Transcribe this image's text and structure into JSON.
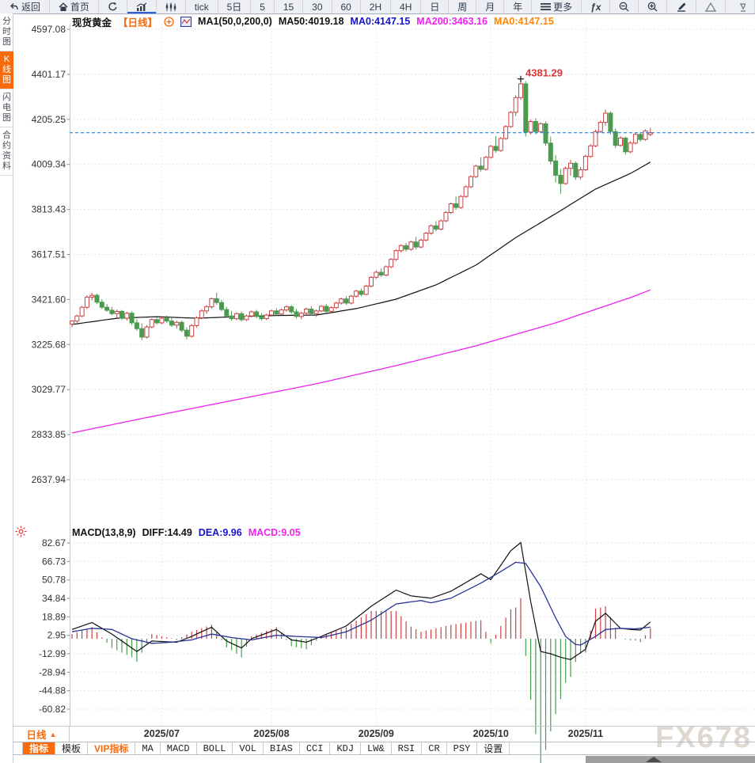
{
  "toolbar": {
    "items": [
      {
        "id": "back",
        "icon": "back-arrow-icon",
        "label": "返回"
      },
      {
        "id": "home",
        "icon": "home-icon",
        "label": "首页"
      },
      {
        "id": "refresh",
        "icon": "refresh-icon",
        "label": ""
      },
      {
        "id": "line-chart",
        "icon": "line-chart-icon",
        "label": "",
        "active": true
      },
      {
        "id": "candle-chart",
        "icon": "candlestick-icon",
        "label": ""
      },
      {
        "id": "tick",
        "label": "tick"
      },
      {
        "id": "5d",
        "label": "5日"
      },
      {
        "id": "m5",
        "label": "5"
      },
      {
        "id": "m15",
        "label": "15"
      },
      {
        "id": "m30",
        "label": "30"
      },
      {
        "id": "m60",
        "label": "60"
      },
      {
        "id": "h2",
        "label": "2H"
      },
      {
        "id": "h4",
        "label": "4H"
      },
      {
        "id": "day",
        "label": "日"
      },
      {
        "id": "week",
        "label": "周"
      },
      {
        "id": "month",
        "label": "月"
      },
      {
        "id": "year",
        "label": "年"
      },
      {
        "id": "more",
        "icon": "menu-icon",
        "label": "更多"
      },
      {
        "id": "fx",
        "label": "ƒx",
        "fx": true
      },
      {
        "id": "zoom-out",
        "icon": "zoom-out-icon",
        "label": ""
      },
      {
        "id": "zoom-in",
        "icon": "zoom-in-icon",
        "label": ""
      },
      {
        "id": "draw",
        "icon": "pencil-icon",
        "label": ""
      },
      {
        "id": "triangle",
        "icon": "triangle-icon",
        "label": ""
      },
      {
        "id": "shape",
        "icon": "shape-icon",
        "label": ""
      }
    ]
  },
  "sidebar": {
    "items": [
      {
        "id": "time-chart",
        "label": "分时图",
        "active": false
      },
      {
        "id": "kline-chart",
        "label": "K线图",
        "active": true
      },
      {
        "id": "flash-chart",
        "label": "闪电图",
        "active": false
      },
      {
        "id": "contract-info",
        "label": "合约资料",
        "active": false
      }
    ]
  },
  "chart_header": {
    "parts": [
      {
        "text": "现货黄金",
        "color": "#111111",
        "bold": true
      },
      {
        "text": "【日线】",
        "color": "#f96a0a",
        "bold": true
      },
      {
        "icon": "add-circle-icon"
      },
      {
        "icon": "ma-chart-icon"
      },
      {
        "text": "MA1(50,0,200,0)",
        "color": "#111111"
      },
      {
        "text": "MA50:4019.18",
        "color": "#111111"
      },
      {
        "text": "MA0:4147.15",
        "color": "#1414cc"
      },
      {
        "text": "MA200:3463.16",
        "color": "#ee22ee"
      },
      {
        "text": "MA0:4147.15",
        "color": "#ff8800"
      }
    ]
  },
  "macd_header": {
    "parts": [
      {
        "text": "MACD(13,8,9)",
        "color": "#111111"
      },
      {
        "text": "DIFF:14.49",
        "color": "#111111"
      },
      {
        "text": "DEA:9.96",
        "color": "#1414cc"
      },
      {
        "text": "MACD:9.05",
        "color": "#ee22ee"
      }
    ]
  },
  "bottom": {
    "period_label": "日线",
    "period_arrow": "▲",
    "tabs": [
      {
        "label": "指标",
        "active": true
      },
      {
        "label": "模板"
      },
      {
        "label": "VIP指标",
        "vip": true
      },
      {
        "label": "MA"
      },
      {
        "label": "MACD"
      },
      {
        "label": "BOLL"
      },
      {
        "label": "VOL"
      },
      {
        "label": "BIAS"
      },
      {
        "label": "CCI"
      },
      {
        "label": "KDJ"
      },
      {
        "label": "LW&"
      },
      {
        "label": "RSI"
      },
      {
        "label": "CR"
      },
      {
        "label": "PSY"
      },
      {
        "label": "设置"
      }
    ]
  },
  "watermark": "FX678",
  "chart_data": {
    "type": "candlestick",
    "title": "现货黄金 日线",
    "price_axis": {
      "ticks": [
        "4597.08",
        "4401.17",
        "4205.25",
        "4009.34",
        "3813.43",
        "3617.51",
        "3421.60",
        "3225.68",
        "3029.77",
        "2833.85",
        "2637.94"
      ]
    },
    "macd_axis": {
      "ticks": [
        "82.67",
        "66.73",
        "50.78",
        "34.84",
        "18.89",
        "2.95",
        "-12.99",
        "-28.94",
        "-44.88",
        "-60.82"
      ]
    },
    "x_axis": {
      "labels": [
        {
          "label": "2025/07",
          "index": 18
        },
        {
          "label": "2025/08",
          "index": 40
        },
        {
          "label": "2025/09",
          "index": 61
        },
        {
          "label": "2025/10",
          "index": 84
        },
        {
          "label": "2025/11",
          "index": 103
        }
      ]
    },
    "current_price": 4147.15,
    "peak_annotation": {
      "index": 90,
      "value": 4381.29,
      "label": "4381.29"
    },
    "colors": {
      "up": "#c94343",
      "down": "#4a9b4f",
      "ma50": "#111111",
      "ma200": "#ee22ee",
      "diff": "#111111",
      "dea": "#283593",
      "price_line": "#1d86e8",
      "annotation": "#e03333",
      "grid": "#d9dce1",
      "axis_text": "#333333"
    },
    "candles": [
      [
        3315,
        3332,
        3302,
        3328
      ],
      [
        3328,
        3356,
        3320,
        3350
      ],
      [
        3350,
        3394,
        3344,
        3388
      ],
      [
        3388,
        3440,
        3380,
        3432
      ],
      [
        3432,
        3451,
        3418,
        3440
      ],
      [
        3440,
        3446,
        3402,
        3410
      ],
      [
        3410,
        3422,
        3380,
        3388
      ],
      [
        3388,
        3402,
        3368,
        3375
      ],
      [
        3375,
        3390,
        3352,
        3360
      ],
      [
        3360,
        3378,
        3340,
        3370
      ],
      [
        3370,
        3376,
        3332,
        3340
      ],
      [
        3340,
        3368,
        3330,
        3362
      ],
      [
        3362,
        3370,
        3312,
        3320
      ],
      [
        3320,
        3336,
        3286,
        3295
      ],
      [
        3295,
        3318,
        3245,
        3258
      ],
      [
        3258,
        3310,
        3252,
        3302
      ],
      [
        3302,
        3340,
        3296,
        3334
      ],
      [
        3334,
        3345,
        3312,
        3320
      ],
      [
        3320,
        3346,
        3314,
        3340
      ],
      [
        3340,
        3352,
        3320,
        3328
      ],
      [
        3328,
        3342,
        3302,
        3310
      ],
      [
        3310,
        3330,
        3295,
        3322
      ],
      [
        3322,
        3330,
        3280,
        3288
      ],
      [
        3288,
        3300,
        3248,
        3262
      ],
      [
        3262,
        3315,
        3256,
        3308
      ],
      [
        3308,
        3348,
        3300,
        3342
      ],
      [
        3342,
        3380,
        3336,
        3372
      ],
      [
        3372,
        3398,
        3360,
        3390
      ],
      [
        3390,
        3430,
        3382,
        3425
      ],
      [
        3425,
        3451,
        3398,
        3408
      ],
      [
        3408,
        3420,
        3370,
        3378
      ],
      [
        3378,
        3390,
        3342,
        3350
      ],
      [
        3350,
        3372,
        3330,
        3338
      ],
      [
        3338,
        3366,
        3332,
        3360
      ],
      [
        3360,
        3370,
        3326,
        3334
      ],
      [
        3334,
        3356,
        3328,
        3350
      ],
      [
        3350,
        3374,
        3344,
        3368
      ],
      [
        3368,
        3376,
        3340,
        3348
      ],
      [
        3348,
        3362,
        3330,
        3338
      ],
      [
        3338,
        3360,
        3332,
        3354
      ],
      [
        3354,
        3378,
        3348,
        3372
      ],
      [
        3372,
        3384,
        3350,
        3358
      ],
      [
        3358,
        3382,
        3352,
        3376
      ],
      [
        3376,
        3396,
        3368,
        3390
      ],
      [
        3390,
        3398,
        3360,
        3368
      ],
      [
        3368,
        3380,
        3340,
        3348
      ],
      [
        3348,
        3368,
        3336,
        3362
      ],
      [
        3362,
        3386,
        3356,
        3380
      ],
      [
        3380,
        3392,
        3352,
        3360
      ],
      [
        3360,
        3378,
        3346,
        3372
      ],
      [
        3372,
        3398,
        3366,
        3392
      ],
      [
        3392,
        3402,
        3362,
        3370
      ],
      [
        3370,
        3392,
        3364,
        3386
      ],
      [
        3386,
        3412,
        3380,
        3406
      ],
      [
        3406,
        3430,
        3400,
        3424
      ],
      [
        3424,
        3436,
        3398,
        3406
      ],
      [
        3406,
        3442,
        3400,
        3436
      ],
      [
        3436,
        3464,
        3430,
        3458
      ],
      [
        3458,
        3470,
        3436,
        3444
      ],
      [
        3444,
        3486,
        3440,
        3480
      ],
      [
        3480,
        3524,
        3474,
        3518
      ],
      [
        3518,
        3548,
        3510,
        3540
      ],
      [
        3540,
        3556,
        3520,
        3528
      ],
      [
        3528,
        3570,
        3522,
        3564
      ],
      [
        3564,
        3602,
        3558,
        3596
      ],
      [
        3596,
        3640,
        3590,
        3634
      ],
      [
        3634,
        3662,
        3626,
        3656
      ],
      [
        3656,
        3668,
        3630,
        3640
      ],
      [
        3640,
        3678,
        3634,
        3672
      ],
      [
        3672,
        3694,
        3640,
        3650
      ],
      [
        3650,
        3686,
        3644,
        3680
      ],
      [
        3680,
        3716,
        3674,
        3710
      ],
      [
        3710,
        3748,
        3704,
        3742
      ],
      [
        3742,
        3762,
        3718,
        3728
      ],
      [
        3728,
        3770,
        3722,
        3764
      ],
      [
        3764,
        3806,
        3758,
        3800
      ],
      [
        3800,
        3844,
        3794,
        3838
      ],
      [
        3838,
        3870,
        3812,
        3822
      ],
      [
        3822,
        3876,
        3816,
        3870
      ],
      [
        3870,
        3918,
        3864,
        3912
      ],
      [
        3912,
        3962,
        3906,
        3956
      ],
      [
        3956,
        4008,
        3950,
        4002
      ],
      [
        4002,
        4040,
        3978,
        3988
      ],
      [
        3988,
        4046,
        3982,
        4040
      ],
      [
        4040,
        4094,
        4034,
        4088
      ],
      [
        4088,
        4132,
        4060,
        4070
      ],
      [
        4070,
        4128,
        4064,
        4122
      ],
      [
        4122,
        4180,
        4116,
        4174
      ],
      [
        4174,
        4242,
        4168,
        4236
      ],
      [
        4236,
        4310,
        4220,
        4300
      ],
      [
        4300,
        4381.29,
        4290,
        4360
      ],
      [
        4360,
        4372,
        4130,
        4150
      ],
      [
        4150,
        4205,
        4140,
        4196
      ],
      [
        4196,
        4210,
        4140,
        4152
      ],
      [
        4152,
        4192,
        4146,
        4186
      ],
      [
        4186,
        4196,
        4090,
        4102
      ],
      [
        4102,
        4130,
        4010,
        4024
      ],
      [
        4024,
        4050,
        3930,
        3962
      ],
      [
        3962,
        3990,
        3881,
        3926
      ],
      [
        3926,
        4000,
        3920,
        3992
      ],
      [
        3992,
        4030,
        3960,
        4014
      ],
      [
        4014,
        4022,
        3942,
        3954
      ],
      [
        3954,
        3998,
        3944,
        3986
      ],
      [
        3986,
        4052,
        3980,
        4044
      ],
      [
        4044,
        4098,
        4038,
        4090
      ],
      [
        4090,
        4160,
        4084,
        4152
      ],
      [
        4152,
        4200,
        4146,
        4192
      ],
      [
        4192,
        4248,
        4178,
        4232
      ],
      [
        4232,
        4240,
        4140,
        4152
      ],
      [
        4152,
        4165,
        4080,
        4092
      ],
      [
        4092,
        4132,
        4086,
        4124
      ],
      [
        4124,
        4130,
        4052,
        4064
      ],
      [
        4064,
        4110,
        4058,
        4102
      ],
      [
        4102,
        4148,
        4096,
        4140
      ],
      [
        4140,
        4150,
        4108,
        4118
      ],
      [
        4118,
        4162,
        4112,
        4155
      ],
      [
        4140,
        4168,
        4132,
        4147.15
      ]
    ],
    "ma50_anchors": [
      [
        0,
        3313
      ],
      [
        9,
        3340
      ],
      [
        17,
        3347
      ],
      [
        25,
        3340
      ],
      [
        33,
        3347
      ],
      [
        41,
        3352
      ],
      [
        49,
        3354
      ],
      [
        57,
        3382
      ],
      [
        65,
        3423
      ],
      [
        73,
        3485
      ],
      [
        81,
        3571
      ],
      [
        89,
        3691
      ],
      [
        97,
        3795
      ],
      [
        105,
        3902
      ],
      [
        112,
        3970
      ],
      [
        116,
        4019.18
      ]
    ],
    "ma200_anchors": [
      [
        0,
        2841
      ],
      [
        17,
        2917
      ],
      [
        33,
        2986
      ],
      [
        49,
        3055
      ],
      [
        65,
        3134
      ],
      [
        81,
        3220
      ],
      [
        97,
        3320
      ],
      [
        112,
        3430
      ],
      [
        116,
        3463.16
      ]
    ],
    "macd": {
      "diff_anchors": [
        [
          0,
          8
        ],
        [
          4,
          14
        ],
        [
          8,
          4
        ],
        [
          13,
          -11
        ],
        [
          16,
          -2
        ],
        [
          21,
          -3
        ],
        [
          24,
          2
        ],
        [
          28,
          10
        ],
        [
          31,
          -2
        ],
        [
          34,
          -8
        ],
        [
          36,
          0
        ],
        [
          41,
          8
        ],
        [
          44,
          -1
        ],
        [
          47,
          -3
        ],
        [
          50,
          2
        ],
        [
          55,
          11
        ],
        [
          60,
          28
        ],
        [
          65,
          42
        ],
        [
          68,
          37
        ],
        [
          72,
          35
        ],
        [
          76,
          41
        ],
        [
          82,
          56
        ],
        [
          84,
          51
        ],
        [
          88,
          76
        ],
        [
          90,
          83
        ],
        [
          92,
          32
        ],
        [
          94,
          -11
        ],
        [
          96,
          -13
        ],
        [
          98,
          -16
        ],
        [
          100,
          -18
        ],
        [
          103,
          -9
        ],
        [
          105,
          15
        ],
        [
          107,
          22
        ],
        [
          110,
          9
        ],
        [
          112,
          8
        ],
        [
          114,
          7.5
        ],
        [
          116,
          14.49
        ]
      ],
      "dea_anchors": [
        [
          0,
          6
        ],
        [
          4,
          9
        ],
        [
          8,
          8
        ],
        [
          12,
          0
        ],
        [
          16,
          -4
        ],
        [
          20,
          -3
        ],
        [
          24,
          -1
        ],
        [
          28,
          4
        ],
        [
          32,
          1
        ],
        [
          36,
          -1
        ],
        [
          41,
          3
        ],
        [
          45,
          2
        ],
        [
          50,
          1
        ],
        [
          55,
          6
        ],
        [
          60,
          16
        ],
        [
          65,
          30
        ],
        [
          70,
          33
        ],
        [
          72,
          31
        ],
        [
          76,
          35
        ],
        [
          82,
          48
        ],
        [
          86,
          58
        ],
        [
          89,
          66
        ],
        [
          91,
          65
        ],
        [
          94,
          45
        ],
        [
          97,
          18
        ],
        [
          99,
          2
        ],
        [
          101,
          -5
        ],
        [
          102,
          -5.5
        ],
        [
          105,
          2
        ],
        [
          107,
          8
        ],
        [
          110,
          9
        ],
        [
          113,
          8.5
        ],
        [
          116,
          9.96
        ]
      ],
      "hist_formula": "2*(diff-dea)"
    }
  }
}
